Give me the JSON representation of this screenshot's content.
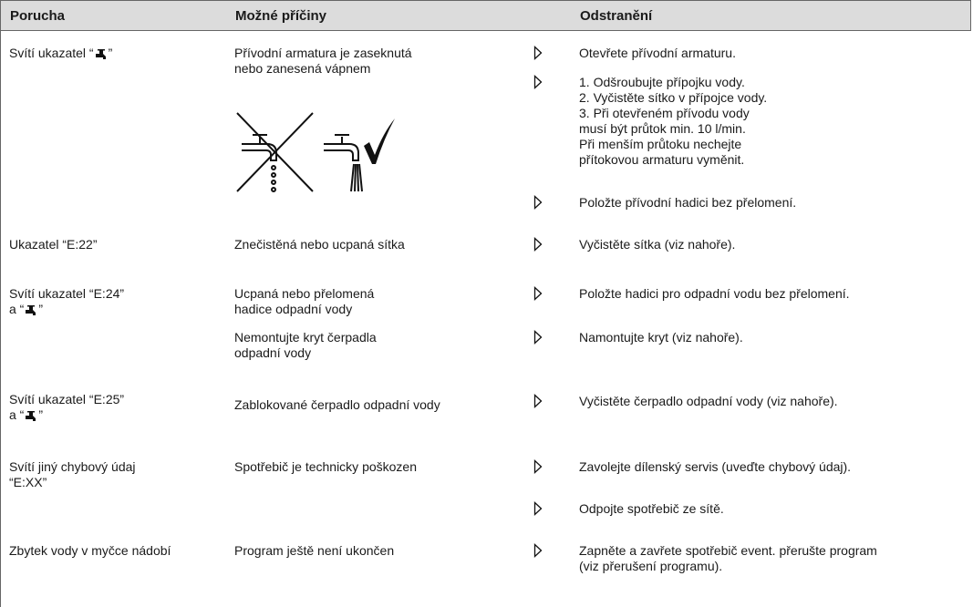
{
  "table": {
    "header": [
      "Porucha",
      "Možné příčiny",
      "Odstranění"
    ],
    "rows": [
      {
        "fault": [
          [
            "Svítí ukazatel “",
            "”"
          ]
        ],
        "causes": [
          [
            "Přívodní armatura je zaseknutá",
            "nebo zanesená vápnem"
          ]
        ],
        "remedies": [
          [
            "Otevřete přívodní armaturu."
          ],
          [
            "1. Odšroubujte přípojku vody.",
            "2. Vyčistěte sítko v přípojce vody.",
            "3. Při otevřeném přívodu vody",
            "musí být průtok min. 10 l/min.",
            "Při menším průtoku nechejte",
            "přítokovou armaturu vyměnit."
          ],
          [
            "Položte přívodní hadici bez přelomení."
          ]
        ]
      },
      {
        "fault": [
          [
            "Ukazatel “E:22”"
          ]
        ],
        "causes": [
          [
            "Znečistěná nebo ucpaná sítka"
          ]
        ],
        "remedies": [
          [
            "Vyčistěte sítka (viz nahoře)."
          ]
        ]
      },
      {
        "fault": [
          [
            "Svítí ukazatel “E:24”"
          ],
          [
            "a “",
            "”"
          ]
        ],
        "causes": [
          [
            "Ucpaná nebo přelomená",
            "hadice odpadní vody"
          ],
          [
            "Nemontujte kryt čerpadla",
            "odpadní vody"
          ]
        ],
        "remedies": [
          [
            "Položte hadici pro odpadní vodu bez přelomení."
          ],
          [
            "Namontujte kryt (viz nahoře)."
          ]
        ]
      },
      {
        "fault": [
          [
            "Svítí ukazatel “E:25”"
          ],
          [
            "a “",
            "”"
          ]
        ],
        "causes": [
          [
            "Zablokované čerpadlo odpadní vody"
          ]
        ],
        "remedies": [
          [
            "Vyčistěte čerpadlo odpadní vody (viz nahoře)."
          ]
        ]
      },
      {
        "fault": [
          [
            "Svítí jiný chybový údaj"
          ],
          [
            "“E:XX”"
          ]
        ],
        "causes": [
          [
            "Spotřebič je technicky poškozen"
          ]
        ],
        "remedies": [
          [
            "Zavolejte dílenský servis (uveďte chybový údaj)."
          ],
          [
            "Odpojte spotřebič ze sítě."
          ]
        ]
      },
      {
        "fault": [
          [
            "Zbytek vody v myčce nádobí"
          ]
        ],
        "causes": [
          [
            "Program ještě není ukončen"
          ]
        ],
        "remedies": [
          [
            "Zapněte a zavřete spotřebič event. přerušte program",
            "(viz přerušení programu)."
          ]
        ]
      }
    ]
  }
}
